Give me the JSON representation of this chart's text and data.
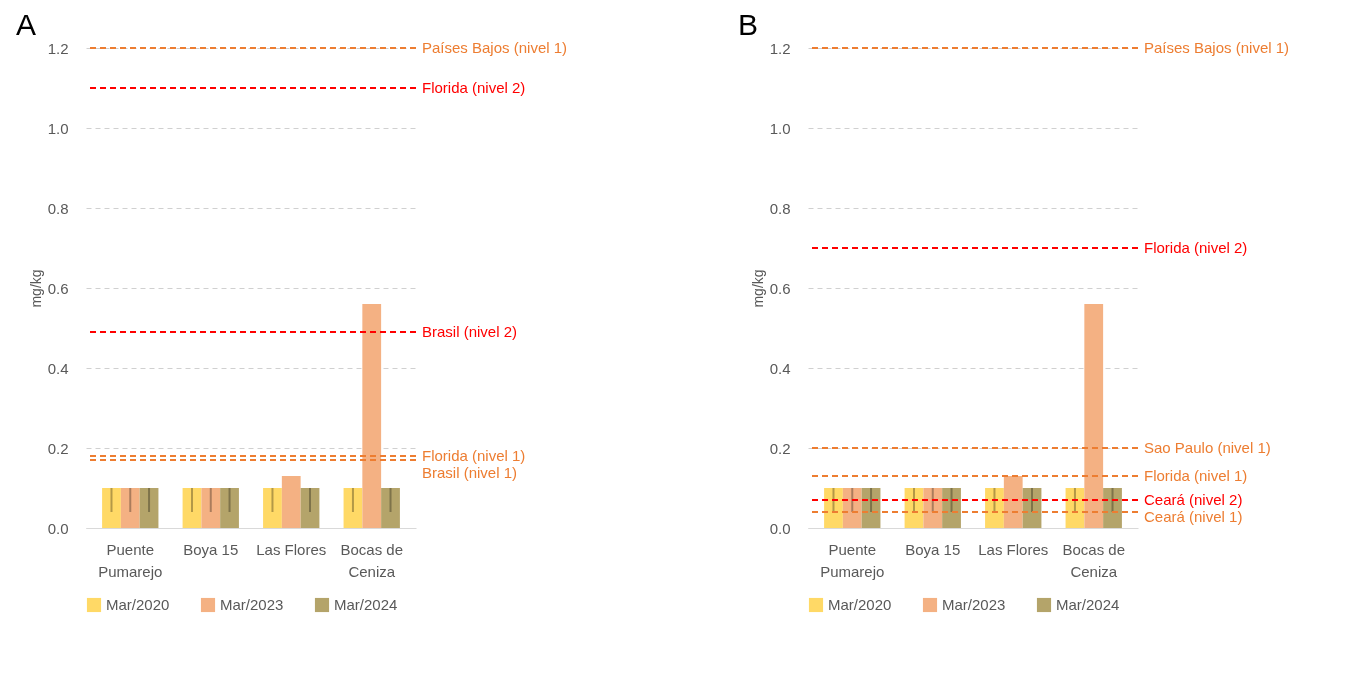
{
  "chart_data": [
    {
      "type": "bar",
      "title": "A",
      "ylabel": "mg/kg",
      "categories": [
        "Puente Pumarejo",
        "Boya 15",
        "Las Flores",
        "Bocas de Ceniza"
      ],
      "series": [
        {
          "name": "Mar/2020",
          "color": "#ffd966",
          "values": [
            0.1,
            0.1,
            0.1,
            0.1
          ],
          "errors": [
            [
              0.04,
              0.1
            ],
            [
              0.04,
              0.1
            ],
            [
              0.04,
              0.1
            ],
            [
              0.04,
              0.1
            ]
          ]
        },
        {
          "name": "Mar/2023",
          "color": "#f4b183",
          "values": [
            0.1,
            0.1,
            0.13,
            0.56
          ],
          "errors": [
            [
              0.04,
              0.1
            ],
            [
              0.04,
              0.1
            ],
            null,
            null
          ]
        },
        {
          "name": "Mar/2024",
          "color": "#b4a46a",
          "values": [
            0.1,
            0.1,
            0.1,
            0.1
          ],
          "errors": [
            [
              0.04,
              0.1
            ],
            [
              0.04,
              0.1
            ],
            [
              0.04,
              0.1
            ],
            [
              0.04,
              0.1
            ]
          ]
        }
      ],
      "ylim": [
        0,
        1.2
      ],
      "yticks": [
        {
          "value": 0,
          "label": "0.0"
        },
        {
          "value": 0.2,
          "label": "0.2"
        },
        {
          "value": 0.4,
          "label": "0.4"
        },
        {
          "value": 0.6,
          "label": "0.6"
        },
        {
          "value": 0.8,
          "label": "0.8"
        },
        {
          "value": 1,
          "label": "1.0"
        },
        {
          "value": 1.2,
          "label": "1.2"
        }
      ],
      "grid": "y",
      "legend": "bottom",
      "ref_lines": [
        {
          "axis": "y",
          "value": 1.2,
          "label": "Países Bajos (nivel 1)",
          "color": "#ed7d31",
          "line_style": "dashed"
        },
        {
          "axis": "y",
          "value": 1.1,
          "label": "Florida (nivel 2)",
          "color": "#ff0000",
          "line_style": "dashed"
        },
        {
          "axis": "y",
          "value": 0.49,
          "label": "Brasil (nivel 2)",
          "color": "#ff0000",
          "line_style": "dashed"
        },
        {
          "axis": "y",
          "value": 0.18,
          "label": "Florida (nivel 1)",
          "color": "#ed7d31",
          "line_style": "dashed"
        },
        {
          "axis": "y",
          "value": 0.17,
          "label": "Brasil (nivel 1)",
          "color": "#ed7d31",
          "line_style": "dashed"
        }
      ]
    },
    {
      "type": "bar",
      "title": "B",
      "ylabel": "mg/kg",
      "categories": [
        "Puente Pumarejo",
        "Boya 15",
        "Las Flores",
        "Bocas de Ceniza"
      ],
      "series": [
        {
          "name": "Mar/2020",
          "color": "#ffd966",
          "values": [
            0.1,
            0.1,
            0.1,
            0.1
          ],
          "errors": [
            [
              0.04,
              0.1
            ],
            [
              0.04,
              0.1
            ],
            [
              0.04,
              0.1
            ],
            [
              0.04,
              0.1
            ]
          ]
        },
        {
          "name": "Mar/2023",
          "color": "#f4b183",
          "values": [
            0.1,
            0.1,
            0.13,
            0.56
          ],
          "errors": [
            [
              0.04,
              0.1
            ],
            [
              0.04,
              0.1
            ],
            null,
            null
          ]
        },
        {
          "name": "Mar/2024",
          "color": "#b4a46a",
          "values": [
            0.1,
            0.1,
            0.1,
            0.1
          ],
          "errors": [
            [
              0.04,
              0.1
            ],
            [
              0.04,
              0.1
            ],
            [
              0.04,
              0.1
            ],
            [
              0.04,
              0.1
            ]
          ]
        }
      ],
      "ylim": [
        0,
        1.2
      ],
      "yticks": [
        {
          "value": 0,
          "label": "0.0"
        },
        {
          "value": 0.2,
          "label": "0.2"
        },
        {
          "value": 0.4,
          "label": "0.4"
        },
        {
          "value": 0.6,
          "label": "0.6"
        },
        {
          "value": 0.8,
          "label": "0.8"
        },
        {
          "value": 1,
          "label": "1.0"
        },
        {
          "value": 1.2,
          "label": "1.2"
        }
      ],
      "grid": "y",
      "legend": "bottom",
      "ref_lines": [
        {
          "axis": "y",
          "value": 1.2,
          "label": "Países Bajos (nivel 1)",
          "color": "#ed7d31",
          "line_style": "dashed"
        },
        {
          "axis": "y",
          "value": 0.7,
          "label": "Florida (nivel 2)",
          "color": "#ff0000",
          "line_style": "dashed"
        },
        {
          "axis": "y",
          "value": 0.2,
          "label": "Sao Paulo (nivel 1)",
          "color": "#ed7d31",
          "line_style": "dashed"
        },
        {
          "axis": "y",
          "value": 0.13,
          "label": "Florida (nivel 1)",
          "color": "#ed7d31",
          "line_style": "dashed"
        },
        {
          "axis": "y",
          "value": 0.07,
          "label": "Ceará (nivel 2)",
          "color": "#ff0000",
          "line_style": "dashed"
        },
        {
          "axis": "y",
          "value": 0.04,
          "label": "Ceará (nivel 1)",
          "color": "#ed7d31",
          "line_style": "dashed"
        }
      ]
    }
  ]
}
